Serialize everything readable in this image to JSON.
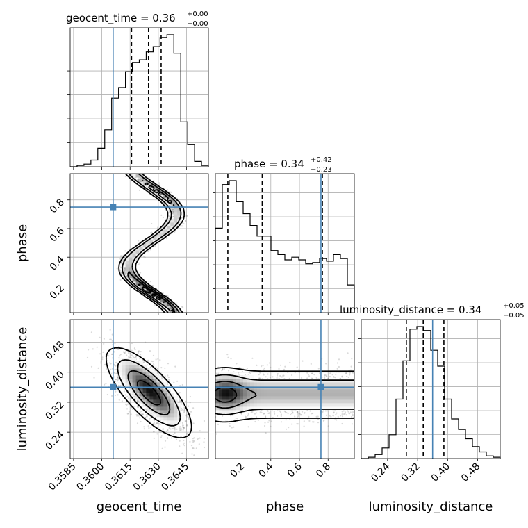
{
  "chart_data": {
    "type": "corner",
    "truth_color": "#4682b4",
    "grid": true,
    "parameters": [
      {
        "name": "geocent_time",
        "xlabel": "geocent_time",
        "title_main": "geocent_time = 0.36",
        "title_plus": "+0.00",
        "title_minus": "−0.00",
        "truth": 0.3606,
        "quantiles": [
          0.36158,
          0.36248,
          0.36315
        ],
        "range": [
          0.35832,
          0.36566
        ],
        "ticks": [
          0.3585,
          0.36,
          0.3615,
          0.363,
          0.3645
        ],
        "tick_labels": [
          "0.3585",
          "0.3600",
          "0.3615",
          "0.3630",
          "0.3645"
        ],
        "hist_counts": [
          0.0,
          0.01,
          0.02,
          0.05,
          0.14,
          0.28,
          0.52,
          0.6,
          0.72,
          0.79,
          0.81,
          0.87,
          0.91,
          0.98,
          1.0,
          0.86,
          0.34,
          0.17,
          0.04,
          0.01
        ]
      },
      {
        "name": "phase",
        "xlabel": "phase",
        "ylabel": "phase",
        "title_main": "phase = 0.34",
        "title_plus": "+0.42",
        "title_minus": "−0.23",
        "truth": 0.75,
        "quantiles": [
          0.1,
          0.34,
          0.76
        ],
        "range": [
          0.013,
          0.983
        ],
        "ticks": [
          0.2,
          0.4,
          0.6,
          0.8
        ],
        "tick_labels": [
          "0.2",
          "0.4",
          "0.6",
          "0.8"
        ],
        "hist_counts": [
          0.64,
          0.97,
          1.0,
          0.84,
          0.75,
          0.66,
          0.58,
          0.58,
          0.47,
          0.44,
          0.4,
          0.42,
          0.4,
          0.37,
          0.38,
          0.41,
          0.39,
          0.44,
          0.41,
          0.21
        ]
      },
      {
        "name": "luminosity_distance",
        "xlabel": "luminosity_distance",
        "ylabel": "luminosity_distance",
        "title_main": "luminosity_distance = 0.34",
        "title_plus": "+0.05",
        "title_minus": "−0.05",
        "truth": 0.36,
        "quantiles": [
          0.29,
          0.335,
          0.39
        ],
        "range": [
          0.17,
          0.54
        ],
        "ticks": [
          0.24,
          0.32,
          0.4,
          0.48
        ],
        "tick_labels": [
          "0.24",
          "0.32",
          "0.40",
          "0.48"
        ],
        "hist_counts": [
          0.0,
          0.01,
          0.03,
          0.08,
          0.18,
          0.45,
          0.74,
          0.98,
          1.0,
          0.97,
          0.82,
          0.7,
          0.45,
          0.3,
          0.22,
          0.15,
          0.09,
          0.05,
          0.02,
          0.01
        ]
      }
    ],
    "contour_levels": [
      "0.5σ",
      "1σ",
      "1.5σ",
      "2σ"
    ]
  }
}
